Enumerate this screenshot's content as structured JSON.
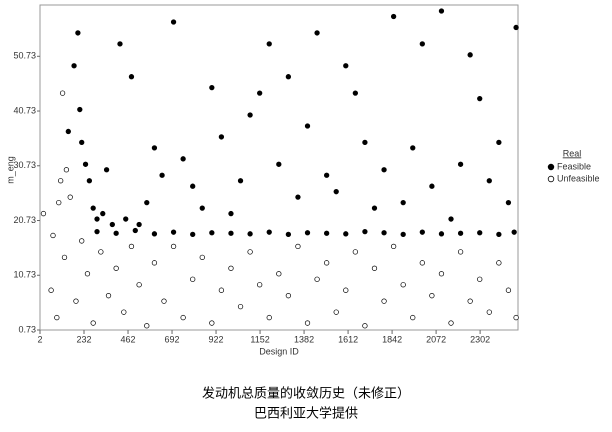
{
  "chart_data": {
    "type": "scatter",
    "xlabel": "Design ID",
    "ylabel": "m_eng",
    "xlim": [
      2,
      2500
    ],
    "ylim": [
      0.73,
      60.1
    ],
    "xticks": [
      2,
      232,
      462,
      692,
      922,
      1152,
      1382,
      1612,
      1842,
      2072,
      2302
    ],
    "yticks": [
      0.73,
      10.73,
      20.73,
      30.73,
      40.73,
      50.73
    ],
    "legend_title": "Real",
    "legend_position": "right",
    "series": [
      {
        "name": "Feasible",
        "color": "#000000",
        "marker": "filled",
        "x": [
          300,
          400,
          500,
          600,
          700,
          800,
          900,
          1000,
          1100,
          1200,
          1300,
          1400,
          1500,
          1600,
          1700,
          1800,
          1900,
          2000,
          2100,
          2200,
          2300,
          2400,
          2480,
          150,
          180,
          200,
          210,
          220,
          240,
          260,
          280,
          300,
          330,
          350,
          380,
          420,
          450,
          480,
          520,
          560,
          600,
          640,
          700,
          750,
          800,
          850,
          900,
          950,
          1000,
          1050,
          1100,
          1150,
          1200,
          1250,
          1300,
          1350,
          1400,
          1450,
          1500,
          1550,
          1600,
          1650,
          1700,
          1750,
          1800,
          1850,
          1900,
          1950,
          2000,
          2050,
          2100,
          2150,
          2200,
          2250,
          2300,
          2350,
          2400,
          2450,
          2490
        ],
        "values": [
          18.7,
          18.4,
          18.9,
          18.3,
          18.6,
          18.2,
          18.5,
          18.4,
          18.3,
          18.6,
          18.2,
          18.5,
          18.4,
          18.3,
          18.7,
          18.5,
          18.2,
          18.6,
          18.3,
          18.4,
          18.5,
          18.2,
          18.6,
          37,
          49,
          55,
          41,
          35,
          31,
          28,
          23,
          21,
          22,
          30,
          20,
          53,
          21,
          47,
          20,
          24,
          34,
          29,
          57,
          32,
          27,
          23,
          45,
          36,
          22,
          28,
          40,
          44,
          53,
          31,
          47,
          25,
          38,
          55,
          29,
          26,
          49,
          44,
          35,
          23,
          30,
          58,
          24,
          34,
          53,
          27,
          59,
          21,
          31,
          51,
          43,
          28,
          35,
          24,
          56
        ]
      },
      {
        "name": "Unfeasible",
        "color": "#000000",
        "marker": "open",
        "x": [
          20,
          60,
          90,
          110,
          130,
          160,
          190,
          220,
          250,
          280,
          320,
          360,
          400,
          440,
          480,
          520,
          560,
          600,
          650,
          700,
          750,
          800,
          850,
          900,
          950,
          1000,
          1050,
          1100,
          1150,
          1200,
          1250,
          1300,
          1350,
          1400,
          1450,
          1500,
          1550,
          1600,
          1650,
          1700,
          1750,
          1800,
          1850,
          1900,
          1950,
          2000,
          2050,
          2100,
          2150,
          2200,
          2250,
          2300,
          2350,
          2400,
          2450,
          2490,
          120,
          140,
          70,
          100
        ],
        "values": [
          22,
          8,
          3,
          28,
          14,
          25,
          6,
          17,
          11,
          2,
          15,
          7,
          12,
          4,
          16,
          9,
          1.5,
          13,
          6,
          16,
          3,
          10,
          14,
          2,
          8,
          12,
          5,
          15,
          9,
          3,
          11,
          7,
          16,
          2,
          10,
          13,
          4,
          8,
          15,
          1.5,
          12,
          6,
          16,
          9,
          3,
          13,
          7,
          11,
          2,
          15,
          6,
          10,
          4,
          13,
          8,
          3,
          44,
          30,
          18,
          24
        ]
      }
    ],
    "caption": [
      "发动机总质量的收敛历史（未修正）",
      "巴西利亚大学提供"
    ]
  }
}
